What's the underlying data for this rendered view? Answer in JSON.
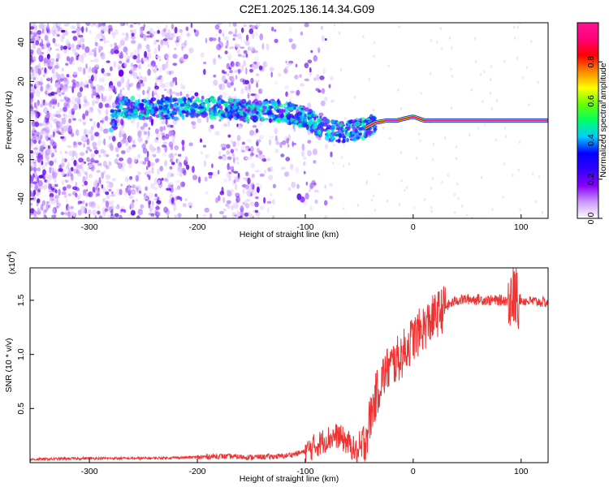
{
  "title": "C2E1.2025.136.14.34.G09",
  "chart_data": [
    {
      "type": "heatmap",
      "xlabel": "Height of straight line (km)",
      "ylabel": "Frequency (Hz)",
      "xlim": [
        -355,
        125
      ],
      "ylim": [
        -50,
        50
      ],
      "xticks": [
        -300,
        -200,
        -100,
        0,
        100
      ],
      "yticks": [
        -40,
        -20,
        0,
        20,
        40
      ],
      "colorbar": {
        "label": "Normalized spectral amplitude",
        "range": [
          0,
          1
        ],
        "ticks": [
          "0.0",
          "0.2",
          "0.4",
          "0.6",
          "0.8"
        ],
        "tick_values": [
          0,
          0.2,
          0.4,
          0.6,
          0.8
        ],
        "colors": [
          "#ffffff",
          "#cc99ff",
          "#8800ff",
          "#3300ff",
          "#0000ff",
          "#00ccff",
          "#00ff66",
          "#66ff00",
          "#ffff00",
          "#ff8800",
          "#ff0000",
          "#ff0077",
          "#ff1493"
        ]
      },
      "frequency_trace": [
        {
          "x": -275,
          "y": 7
        },
        {
          "x": -250,
          "y": 6
        },
        {
          "x": -225,
          "y": 6
        },
        {
          "x": -200,
          "y": 7
        },
        {
          "x": -175,
          "y": 6
        },
        {
          "x": -150,
          "y": 5
        },
        {
          "x": -125,
          "y": 5
        },
        {
          "x": -110,
          "y": 3
        },
        {
          "x": -95,
          "y": 0
        },
        {
          "x": -85,
          "y": -3
        },
        {
          "x": -75,
          "y": -5
        },
        {
          "x": -65,
          "y": -6
        },
        {
          "x": -55,
          "y": -5
        },
        {
          "x": -45,
          "y": -4
        },
        {
          "x": -35,
          "y": -1
        },
        {
          "x": -25,
          "y": 0
        },
        {
          "x": -15,
          "y": 0
        },
        {
          "x": -8,
          "y": 1
        },
        {
          "x": 0,
          "y": 2
        },
        {
          "x": 10,
          "y": 0
        },
        {
          "x": 40,
          "y": 0
        },
        {
          "x": 70,
          "y": 0
        },
        {
          "x": 100,
          "y": 0
        },
        {
          "x": 125,
          "y": 0
        }
      ]
    },
    {
      "type": "line",
      "xlabel": "Height of straight line (km)",
      "ylabel": "SNR (10 * v/v)",
      "yscale_label": "(x10",
      "yscale_exp": "4",
      "xlim": [
        -355,
        125
      ],
      "ylim": [
        0,
        1.8
      ],
      "xticks": [
        -300,
        -200,
        -100,
        0,
        100
      ],
      "yticks": [
        "0.5",
        "1.0",
        "1.5"
      ],
      "ytick_values": [
        0.5,
        1.0,
        1.5
      ],
      "series": [
        {
          "color": "#ee3333",
          "x": [
            -355,
            -300,
            -250,
            -200,
            -180,
            -150,
            -120,
            -100,
            -90,
            -80,
            -70,
            -60,
            -50,
            -45,
            -40,
            -35,
            -30,
            -25,
            -20,
            -15,
            -10,
            -5,
            0,
            10,
            20,
            30,
            40,
            50,
            60,
            70,
            80,
            90,
            95,
            100,
            110,
            125
          ],
          "y": [
            0.03,
            0.04,
            0.04,
            0.05,
            0.06,
            0.05,
            0.06,
            0.1,
            0.16,
            0.22,
            0.25,
            0.18,
            0.07,
            0.2,
            0.4,
            0.6,
            0.75,
            0.85,
            0.9,
            0.95,
            1.0,
            1.08,
            1.15,
            1.25,
            1.35,
            1.44,
            1.5,
            1.51,
            1.51,
            1.5,
            1.5,
            1.5,
            1.55,
            1.5,
            1.49,
            1.48
          ]
        }
      ]
    }
  ]
}
